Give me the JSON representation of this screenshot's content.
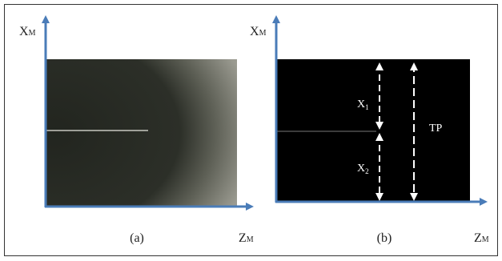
{
  "panels": [
    {
      "y_axis": {
        "main": "X",
        "sub": "M"
      },
      "x_axis": {
        "main": "Z",
        "sub": "M"
      },
      "caption": "(a)"
    },
    {
      "y_axis": {
        "main": "X",
        "sub": "M"
      },
      "x_axis": {
        "main": "Z",
        "sub": "M"
      },
      "caption": "(b)",
      "annotations": [
        {
          "main": "X",
          "sub": "1"
        },
        {
          "main": "X",
          "sub": "2"
        },
        {
          "main": "TP"
        }
      ]
    }
  ]
}
